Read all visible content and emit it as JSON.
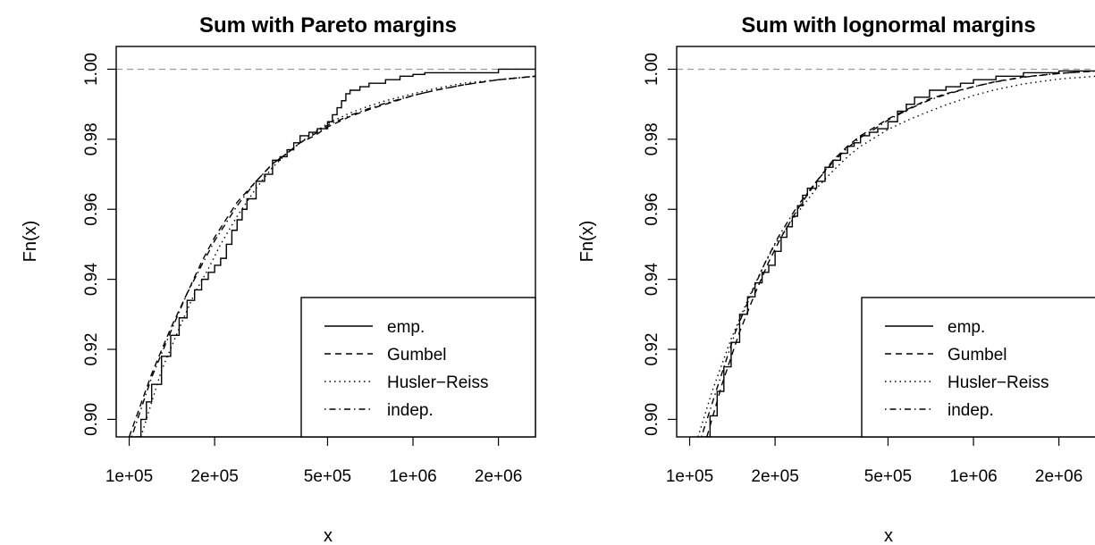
{
  "chart_data": [
    {
      "type": "line",
      "title": "Sum with Pareto margins",
      "xlabel": "x",
      "ylabel": "Fn(x)",
      "x_scale": "log",
      "xlim": [
        90000,
        2700000
      ],
      "ylim": [
        0.895,
        1.0065
      ],
      "x_ticks": [
        100000,
        200000,
        500000,
        1000000,
        2000000
      ],
      "x_tick_labels": [
        "1e+05",
        "2e+05",
        "5e+05",
        "1e+06",
        "2e+06"
      ],
      "y_ticks": [
        0.9,
        0.92,
        0.94,
        0.96,
        0.98,
        1.0
      ],
      "y_tick_labels": [
        "0.90",
        "0.92",
        "0.94",
        "0.96",
        "0.98",
        "1.00"
      ],
      "reference_line": 1.0,
      "legend_position": "bottom-right",
      "series": [
        {
          "name": "emp.",
          "style": "solid",
          "step": true,
          "x": [
            105000,
            110000,
            115000,
            120000,
            130000,
            140000,
            150000,
            160000,
            170000,
            180000,
            190000,
            200000,
            210000,
            220000,
            230000,
            240000,
            250000,
            260000,
            280000,
            300000,
            320000,
            340000,
            360000,
            380000,
            400000,
            430000,
            460000,
            500000,
            520000,
            540000,
            560000,
            580000,
            600000,
            650000,
            700000,
            800000,
            900000,
            1000000,
            1100000,
            1200000,
            1500000,
            2000000,
            2700000
          ],
          "y": [
            0.895,
            0.9,
            0.905,
            0.91,
            0.918,
            0.924,
            0.929,
            0.934,
            0.937,
            0.94,
            0.942,
            0.944,
            0.946,
            0.95,
            0.954,
            0.957,
            0.96,
            0.963,
            0.968,
            0.97,
            0.974,
            0.975,
            0.977,
            0.979,
            0.981,
            0.982,
            0.983,
            0.985,
            0.987,
            0.989,
            0.991,
            0.993,
            0.994,
            0.995,
            0.996,
            0.997,
            0.998,
            0.9985,
            0.999,
            0.999,
            0.999,
            1.0,
            1.0
          ]
        },
        {
          "name": "Gumbel",
          "style": "dashed",
          "step": false,
          "x": [
            100000,
            120000,
            140000,
            160000,
            180000,
            200000,
            240000,
            280000,
            320000,
            360000,
            400000,
            450000,
            500000,
            600000,
            700000,
            800000,
            1000000,
            1200000,
            1500000,
            2000000,
            2700000
          ],
          "y": [
            0.895,
            0.913,
            0.926,
            0.936,
            0.945,
            0.952,
            0.962,
            0.968,
            0.973,
            0.976,
            0.979,
            0.981,
            0.9835,
            0.9865,
            0.9885,
            0.99,
            0.9925,
            0.994,
            0.9955,
            0.997,
            0.998
          ]
        },
        {
          "name": "Husler−Reiss",
          "style": "dotted",
          "step": false,
          "x": [
            110000,
            130000,
            150000,
            170000,
            190000,
            210000,
            240000,
            280000,
            320000,
            360000,
            400000,
            450000,
            500000,
            600000,
            700000,
            800000,
            1000000,
            1200000,
            1500000,
            2000000,
            2700000
          ],
          "y": [
            0.895,
            0.914,
            0.926,
            0.936,
            0.943,
            0.95,
            0.958,
            0.966,
            0.972,
            0.976,
            0.979,
            0.982,
            0.9845,
            0.9875,
            0.9895,
            0.991,
            0.993,
            0.9945,
            0.996,
            0.997,
            0.998
          ]
        },
        {
          "name": "indep.",
          "style": "dotdash",
          "step": false,
          "x": [
            102000,
            120000,
            140000,
            160000,
            180000,
            200000,
            240000,
            280000,
            320000,
            360000,
            400000,
            450000,
            500000,
            600000,
            700000,
            800000,
            1000000,
            1200000,
            1500000,
            2000000,
            2700000
          ],
          "y": [
            0.895,
            0.912,
            0.925,
            0.936,
            0.944,
            0.951,
            0.961,
            0.968,
            0.973,
            0.976,
            0.979,
            0.9815,
            0.984,
            0.9868,
            0.9888,
            0.9903,
            0.9925,
            0.994,
            0.9955,
            0.997,
            0.998
          ]
        }
      ]
    },
    {
      "type": "line",
      "title": "Sum with lognormal margins",
      "xlabel": "x",
      "ylabel": "Fn(x)",
      "x_scale": "log",
      "xlim": [
        90000,
        2700000
      ],
      "ylim": [
        0.895,
        1.0065
      ],
      "x_ticks": [
        100000,
        200000,
        500000,
        1000000,
        2000000
      ],
      "x_tick_labels": [
        "1e+05",
        "2e+05",
        "5e+05",
        "1e+06",
        "2e+06"
      ],
      "y_ticks": [
        0.9,
        0.92,
        0.94,
        0.96,
        0.98,
        1.0
      ],
      "y_tick_labels": [
        "0.90",
        "0.92",
        "0.94",
        "0.96",
        "0.98",
        "1.00"
      ],
      "reference_line": 1.0,
      "legend_position": "bottom-right",
      "series": [
        {
          "name": "emp.",
          "style": "solid",
          "step": true,
          "x": [
            112000,
            118000,
            125000,
            132000,
            140000,
            150000,
            160000,
            170000,
            180000,
            190000,
            200000,
            210000,
            220000,
            230000,
            240000,
            250000,
            260000,
            280000,
            300000,
            320000,
            340000,
            360000,
            380000,
            400000,
            430000,
            460000,
            500000,
            540000,
            580000,
            620000,
            700000,
            800000,
            900000,
            1000000,
            1200000,
            1500000,
            2000000,
            2700000
          ],
          "y": [
            0.895,
            0.901,
            0.908,
            0.915,
            0.922,
            0.93,
            0.935,
            0.939,
            0.942,
            0.944,
            0.948,
            0.952,
            0.955,
            0.958,
            0.961,
            0.964,
            0.966,
            0.968,
            0.972,
            0.974,
            0.976,
            0.978,
            0.979,
            0.981,
            0.982,
            0.983,
            0.985,
            0.988,
            0.99,
            0.992,
            0.994,
            0.995,
            0.996,
            0.997,
            0.998,
            0.999,
            0.9995,
            1.0
          ]
        },
        {
          "name": "Gumbel",
          "style": "dashed",
          "step": false,
          "x": [
            115000,
            130000,
            150000,
            170000,
            190000,
            210000,
            240000,
            280000,
            320000,
            360000,
            400000,
            450000,
            500000,
            600000,
            700000,
            800000,
            1000000,
            1200000,
            1500000,
            2000000,
            2700000
          ],
          "y": [
            0.895,
            0.91,
            0.925,
            0.936,
            0.945,
            0.952,
            0.96,
            0.968,
            0.974,
            0.978,
            0.981,
            0.9835,
            0.9858,
            0.989,
            0.9915,
            0.993,
            0.995,
            0.9965,
            0.9978,
            0.9988,
            0.9995
          ]
        },
        {
          "name": "Husler−Reiss",
          "style": "dotted",
          "step": false,
          "x": [
            107000,
            120000,
            140000,
            160000,
            180000,
            200000,
            240000,
            280000,
            320000,
            360000,
            400000,
            450000,
            500000,
            600000,
            700000,
            800000,
            1000000,
            1200000,
            1500000,
            2000000,
            2700000
          ],
          "y": [
            0.895,
            0.908,
            0.923,
            0.934,
            0.943,
            0.95,
            0.959,
            0.966,
            0.971,
            0.975,
            0.978,
            0.9805,
            0.9828,
            0.9858,
            0.988,
            0.9898,
            0.9925,
            0.9942,
            0.9958,
            0.9972,
            0.998
          ]
        },
        {
          "name": "indep.",
          "style": "dotdash",
          "step": false,
          "x": [
            110000,
            125000,
            145000,
            165000,
            185000,
            205000,
            240000,
            280000,
            320000,
            360000,
            400000,
            450000,
            500000,
            600000,
            700000,
            800000,
            1000000,
            1200000,
            1500000,
            2000000,
            2700000
          ],
          "y": [
            0.895,
            0.909,
            0.925,
            0.936,
            0.945,
            0.952,
            0.961,
            0.968,
            0.9735,
            0.9775,
            0.9805,
            0.983,
            0.9855,
            0.9888,
            0.9912,
            0.9928,
            0.995,
            0.9964,
            0.9977,
            0.9988,
            0.9995
          ]
        }
      ]
    }
  ]
}
